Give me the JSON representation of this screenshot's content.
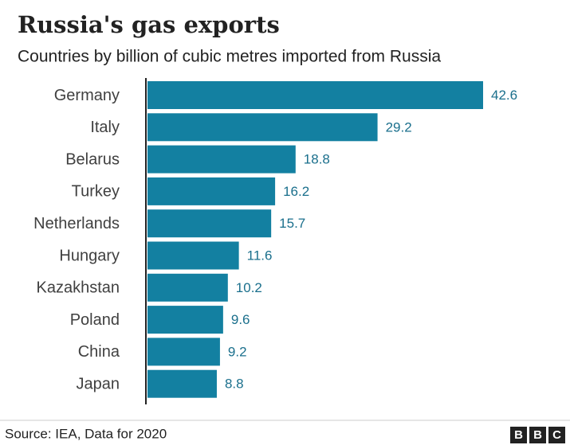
{
  "chart_data": {
    "type": "bar",
    "orientation": "horizontal",
    "title": "Russia's gas exports",
    "subtitle": "Countries by billion of cubic metres imported from Russia",
    "categories": [
      "Germany",
      "Italy",
      "Belarus",
      "Turkey",
      "Netherlands",
      "Hungary",
      "Kazakhstan",
      "Poland",
      "China",
      "Japan"
    ],
    "values": [
      42.6,
      29.2,
      18.8,
      16.2,
      15.7,
      11.6,
      10.2,
      9.6,
      9.2,
      8.8
    ],
    "color": "#1380a1",
    "source": "Source: IEA, Data for 2020",
    "logo": [
      "B",
      "B",
      "C"
    ]
  }
}
